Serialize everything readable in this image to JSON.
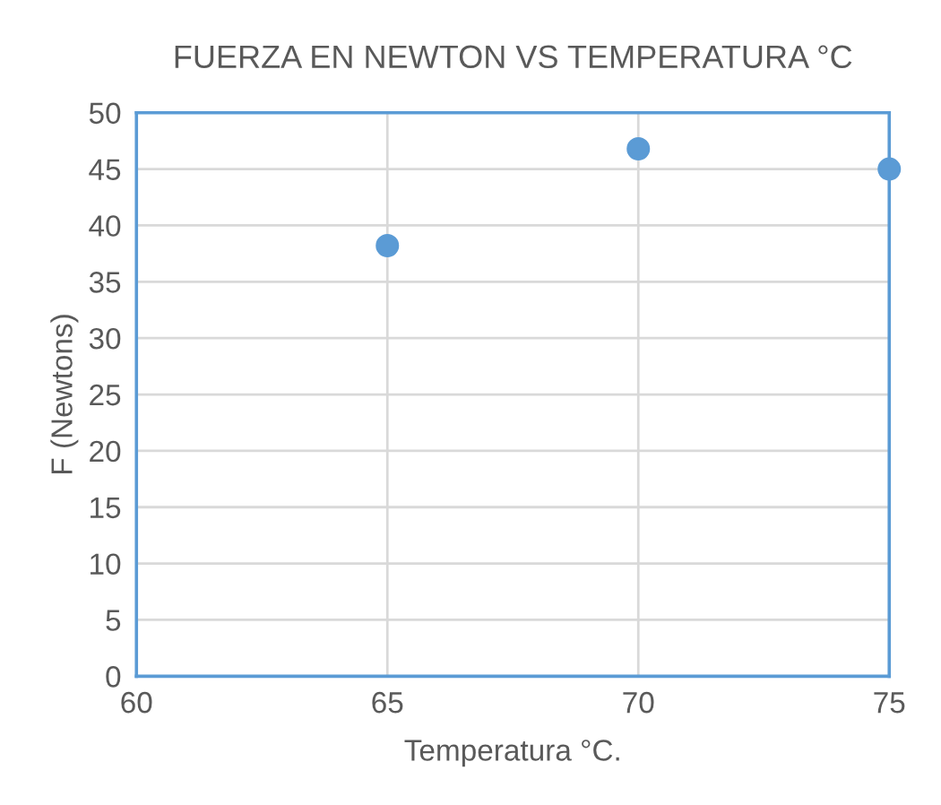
{
  "chart_data": {
    "type": "scatter",
    "title": "FUERZA EN NEWTON VS TEMPERATURA °C",
    "xlabel": "Temperatura °C.",
    "ylabel": "F (Newtons)",
    "x": [
      65,
      70,
      75
    ],
    "series": [
      {
        "color": "#5b9bd5",
        "values": [
          38.2,
          46.8,
          45.0
        ]
      }
    ],
    "xlim": [
      60,
      75
    ],
    "xticks": [
      60,
      65,
      70,
      75
    ],
    "ylim": [
      0,
      50
    ],
    "yticks": [
      0,
      5,
      10,
      15,
      20,
      25,
      30,
      35,
      40,
      45,
      50
    ],
    "grid": true,
    "marker": "circle"
  }
}
